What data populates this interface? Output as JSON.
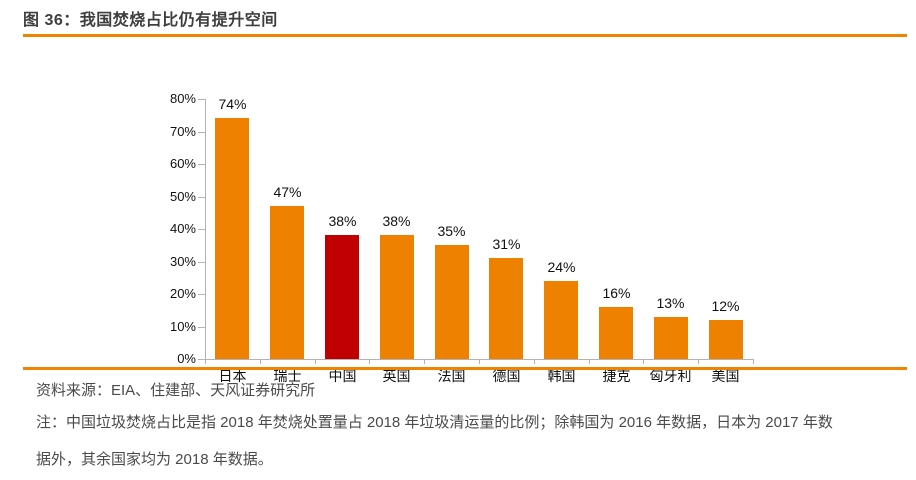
{
  "header": {
    "title": "图 36：我国焚烧占比仍有提升空间",
    "accent_color": "#f08300"
  },
  "footer": {
    "source": "资料来源：EIA、住建部、天风证券研究所",
    "note": "注：中国垃圾焚烧占比是指 2018 年焚烧处置量占 2018 年垃圾清运量的比例；除韩国为 2016 年数据，日本为 2017 年数据外，其余国家均为 2018 年数据。"
  },
  "chart_data": {
    "type": "bar",
    "title": "图 36：我国焚烧占比仍有提升空间",
    "categories": [
      "日本",
      "瑞士",
      "中国",
      "英国",
      "法国",
      "德国",
      "韩国",
      "捷克",
      "匈牙利",
      "美国"
    ],
    "values": [
      74,
      47,
      38,
      38,
      35,
      31,
      24,
      16,
      13,
      12
    ],
    "value_labels": [
      "74%",
      "47%",
      "38%",
      "38%",
      "35%",
      "31%",
      "24%",
      "16%",
      "13%",
      "12%"
    ],
    "highlight_index": 2,
    "highlight_category": "中国",
    "bar_color": "#ee8100",
    "highlight_color": "#c00000",
    "axis_color": "#b3b3b3",
    "xlabel": "",
    "ylabel": "",
    "ylim": [
      0,
      80
    ],
    "yticks": [
      "0%",
      "10%",
      "20%",
      "30%",
      "40%",
      "50%",
      "60%",
      "70%",
      "80%"
    ],
    "grid": false,
    "legend": false,
    "data_labels": true
  }
}
